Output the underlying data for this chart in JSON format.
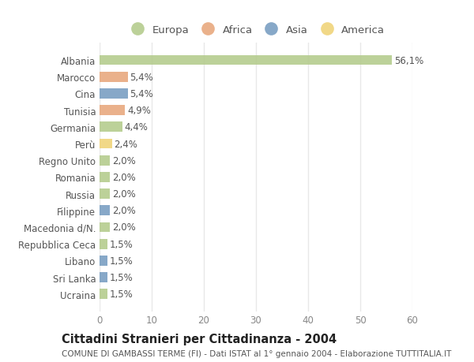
{
  "countries": [
    "Albania",
    "Marocco",
    "Cina",
    "Tunisia",
    "Germania",
    "Perù",
    "Regno Unito",
    "Romania",
    "Russia",
    "Filippine",
    "Macedonia d/N.",
    "Repubblica Ceca",
    "Libano",
    "Sri Lanka",
    "Ucraina"
  ],
  "values": [
    56.1,
    5.4,
    5.4,
    4.9,
    4.4,
    2.4,
    2.0,
    2.0,
    2.0,
    2.0,
    2.0,
    1.5,
    1.5,
    1.5,
    1.5
  ],
  "labels": [
    "56,1%",
    "5,4%",
    "5,4%",
    "4,9%",
    "4,4%",
    "2,4%",
    "2,0%",
    "2,0%",
    "2,0%",
    "2,0%",
    "2,0%",
    "1,5%",
    "1,5%",
    "1,5%",
    "1,5%"
  ],
  "continents": [
    "Europa",
    "Africa",
    "Asia",
    "Africa",
    "Europa",
    "America",
    "Europa",
    "Europa",
    "Europa",
    "Asia",
    "Europa",
    "Europa",
    "Asia",
    "Asia",
    "Europa"
  ],
  "continent_colors": {
    "Europa": "#b5cc8e",
    "Africa": "#e8a97e",
    "Asia": "#7a9fc2",
    "America": "#f0d47a"
  },
  "legend_order": [
    "Europa",
    "Africa",
    "Asia",
    "America"
  ],
  "title1": "Cittadini Stranieri per Cittadinanza - 2004",
  "title2": "COMUNE DI GAMBASSI TERME (FI) - Dati ISTAT al 1° gennaio 2004 - Elaborazione TUTTITALIA.IT",
  "xlim": [
    0,
    60
  ],
  "xticks": [
    0,
    10,
    20,
    30,
    40,
    50,
    60
  ],
  "background_color": "#ffffff",
  "plot_bg_color": "#ffffff",
  "bar_height": 0.6,
  "grid_color": "#e8e8e8",
  "label_fontsize": 8.5,
  "tick_fontsize": 8.5,
  "legend_fontsize": 9.5,
  "title1_fontsize": 10.5,
  "title2_fontsize": 7.5
}
